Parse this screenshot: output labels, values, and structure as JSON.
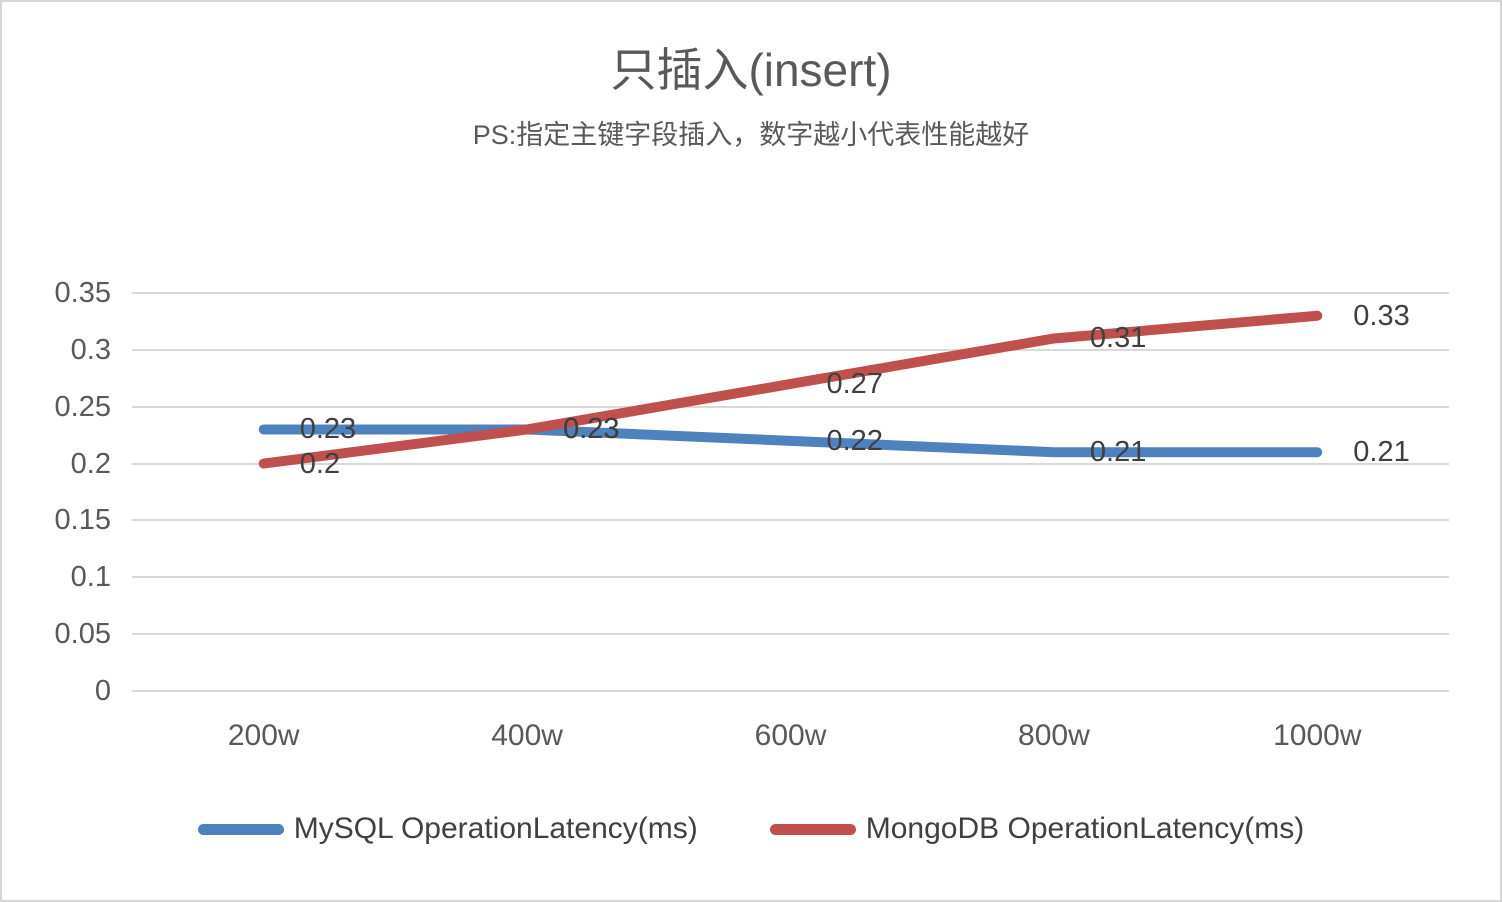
{
  "chart_data": {
    "type": "line",
    "title": "只插入(insert)",
    "subtitle": "PS:指定主键字段插入，数字越小代表性能越好",
    "categories": [
      "200w",
      "400w",
      "600w",
      "800w",
      "1000w"
    ],
    "series": [
      {
        "name": "MySQL OperationLatency(ms)",
        "color": "#4F81BD",
        "values": [
          0.23,
          0.23,
          0.22,
          0.21,
          0.21
        ],
        "labels": [
          "0.23",
          "0.23",
          "0.22",
          "0.21",
          "0.21"
        ]
      },
      {
        "name": "MongoDB OperationLatency(ms)",
        "color": "#C0504D",
        "values": [
          0.2,
          0.23,
          0.27,
          0.31,
          0.33
        ],
        "labels": [
          "0.2",
          "0.23",
          "0.27",
          "0.31",
          "0.33"
        ]
      }
    ],
    "y_axis": {
      "min": 0,
      "max": 0.35,
      "step": 0.05,
      "ticks": [
        "0",
        "0.05",
        "0.1",
        "0.15",
        "0.2",
        "0.25",
        "0.3",
        "0.35"
      ]
    },
    "xlabel": "",
    "ylabel": "",
    "grid": true,
    "legend_position": "bottom",
    "colors": {
      "gridline": "#d9d9d9",
      "axis_text": "#595959",
      "data_label_text": "#3f3f3f",
      "title_text": "#595959",
      "frame_border": "#d6d6d6"
    }
  }
}
